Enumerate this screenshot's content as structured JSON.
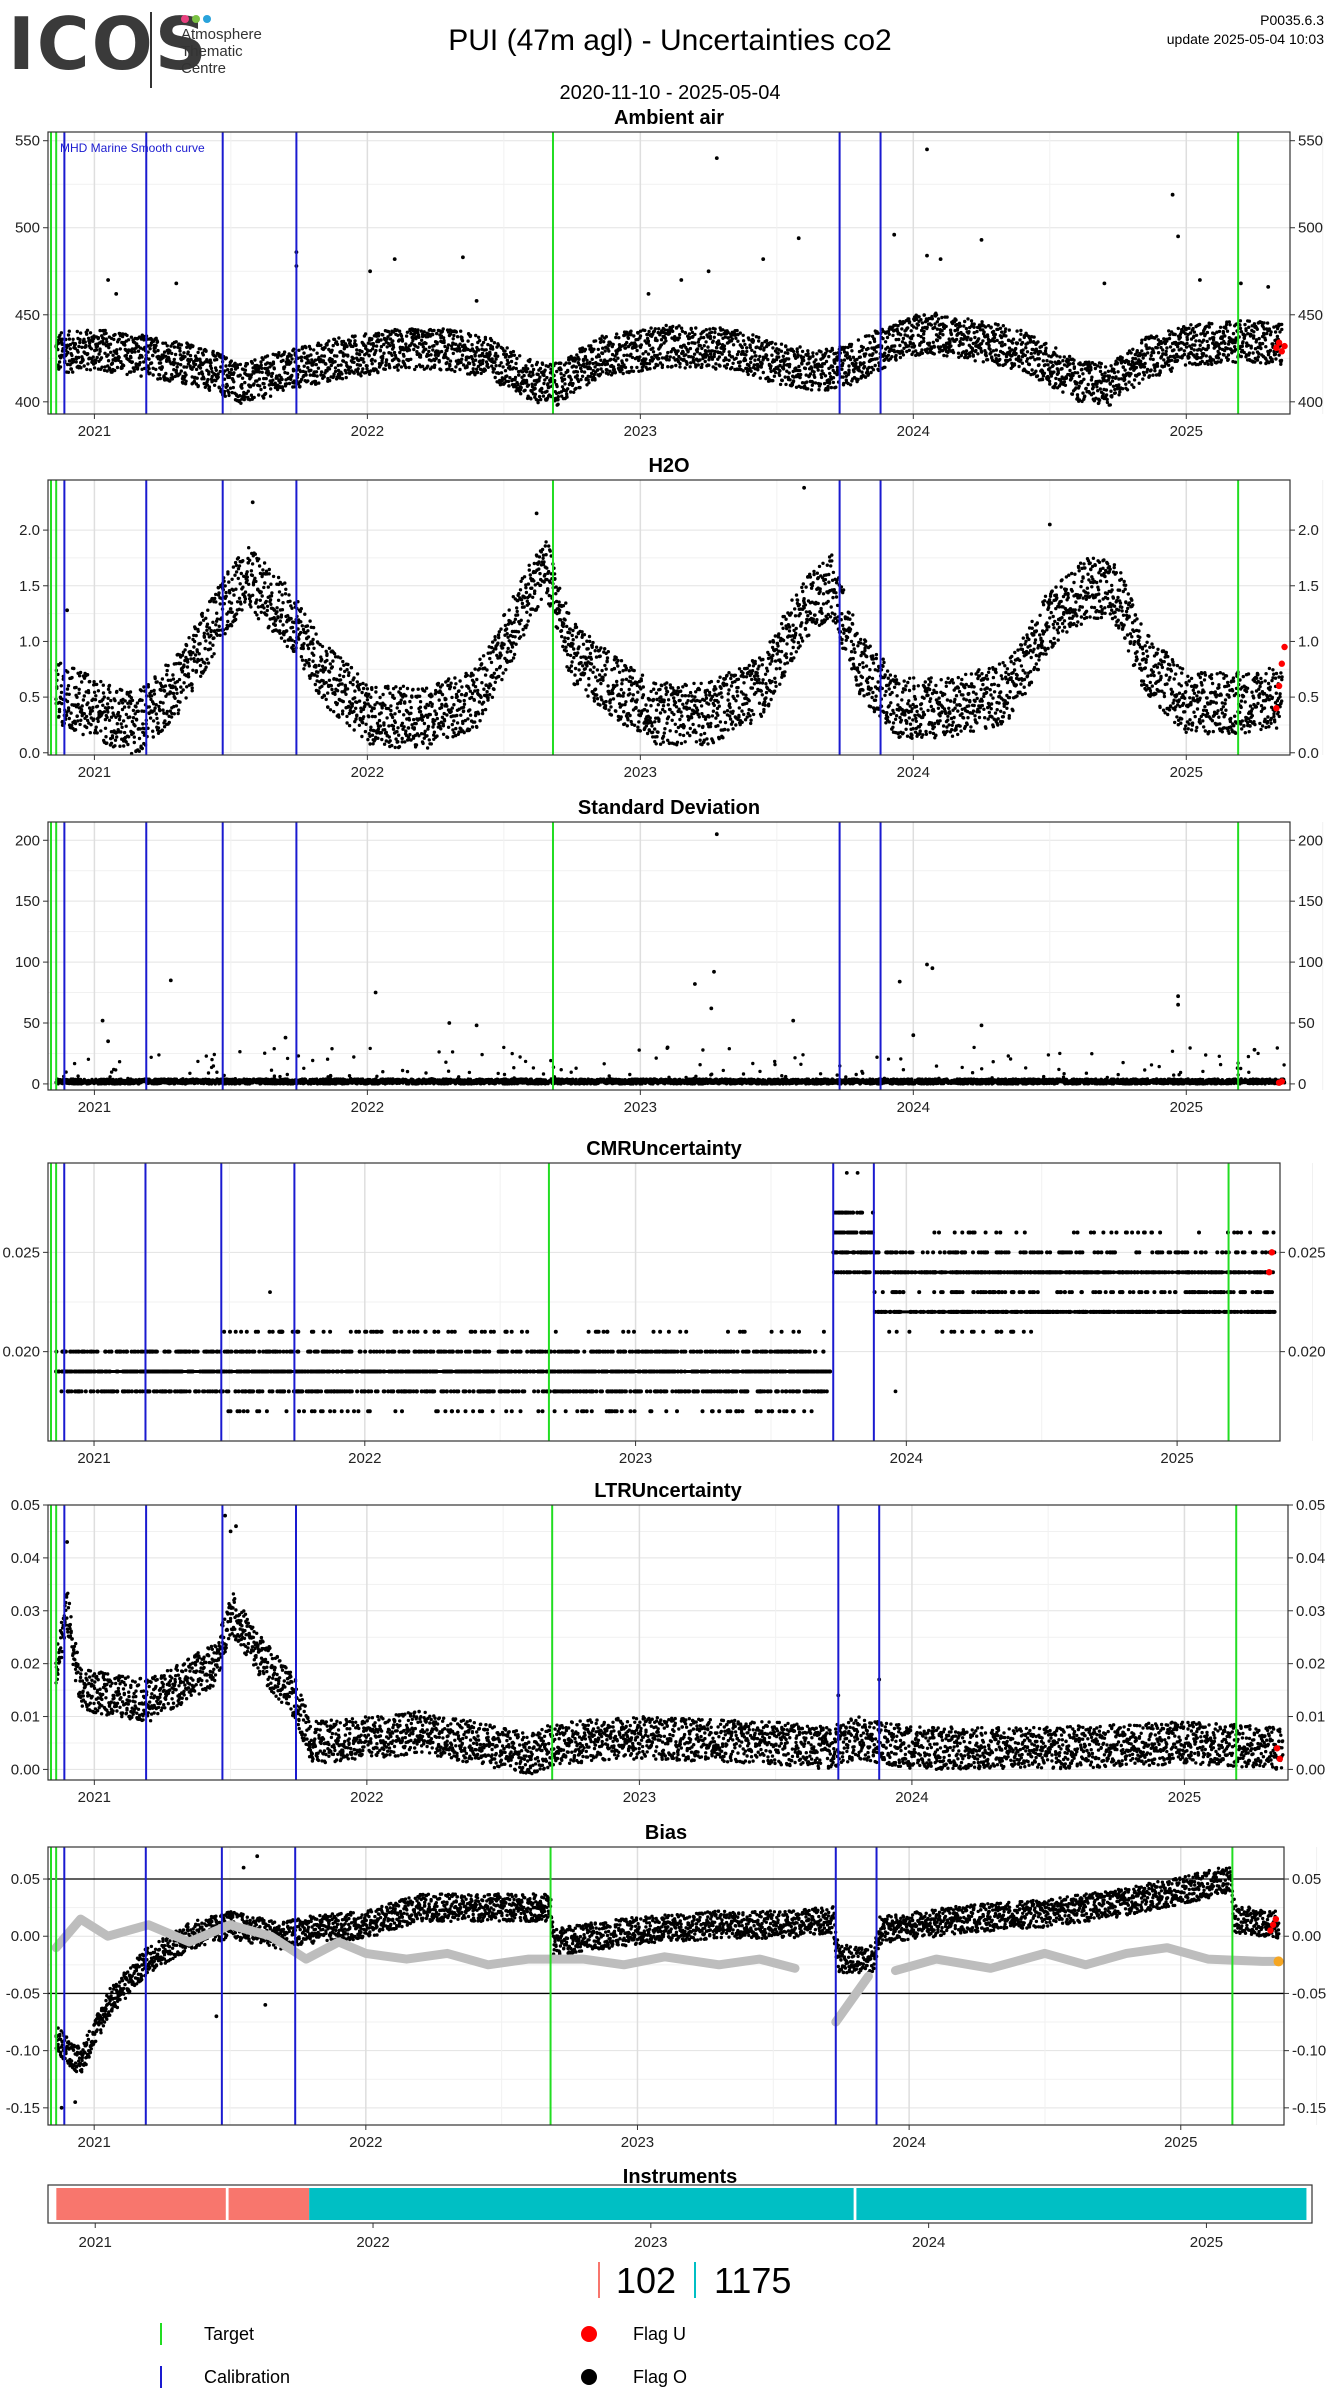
{
  "header": {
    "logo": "ICOS",
    "logo_subtitle": [
      "Atmosphere",
      "Thematic",
      "Centre"
    ],
    "logo_dot_colors": [
      "#e8417f",
      "#7ac143",
      "#29a3db"
    ],
    "title": "PUI  (47m agl) - Uncertainties co2",
    "date_range": "2020-11-10 - 2025-05-04",
    "version": "P0035.6.3",
    "update": "update  2025-05-04 10:03"
  },
  "colors": {
    "target": "#22dd22",
    "calibration": "#1a1ad0",
    "flag_u": "#ff0000",
    "flag_o": "#000000",
    "smooth": "#bdbdbd",
    "instrument_a": "#f8766d",
    "instrument_b": "#00bfc4",
    "bias_end_marker": "#f5a623"
  },
  "events": {
    "target_dates": [
      2020.86,
      2022.68,
      2025.19
    ],
    "calibration_dates": [
      2020.89,
      2021.19,
      2021.47,
      2021.74,
      2023.73,
      2023.88
    ]
  },
  "chart_data": [
    {
      "type": "scatter",
      "title": "Ambient air",
      "annotation": "MHD Marine Smooth curve",
      "x_range": [
        2020.83,
        2025.38
      ],
      "x_ticks": [
        "2021",
        "2022",
        "2023",
        "2024",
        "2025"
      ],
      "ylim": [
        393,
        555
      ],
      "y_ticks": [
        400,
        450,
        500,
        550
      ],
      "grid": true,
      "baseline": [
        [
          2020.86,
          428
        ],
        [
          2021.0,
          430
        ],
        [
          2021.2,
          426
        ],
        [
          2021.4,
          420
        ],
        [
          2021.55,
          410
        ],
        [
          2021.7,
          418
        ],
        [
          2021.9,
          425
        ],
        [
          2022.1,
          430
        ],
        [
          2022.3,
          430
        ],
        [
          2022.45,
          425
        ],
        [
          2022.6,
          412
        ],
        [
          2022.7,
          410
        ],
        [
          2022.85,
          426
        ],
        [
          2023.1,
          432
        ],
        [
          2023.35,
          430
        ],
        [
          2023.5,
          422
        ],
        [
          2023.65,
          418
        ],
        [
          2023.75,
          420
        ],
        [
          2023.9,
          432
        ],
        [
          2024.05,
          440
        ],
        [
          2024.2,
          436
        ],
        [
          2024.4,
          430
        ],
        [
          2024.6,
          412
        ],
        [
          2024.72,
          410
        ],
        [
          2024.85,
          425
        ],
        [
          2025.0,
          432
        ],
        [
          2025.2,
          435
        ],
        [
          2025.35,
          433
        ]
      ],
      "spread": 12,
      "outliers": [
        [
          2021.05,
          470
        ],
        [
          2021.08,
          462
        ],
        [
          2021.3,
          468
        ],
        [
          2021.74,
          486
        ],
        [
          2021.74,
          478
        ],
        [
          2022.01,
          475
        ],
        [
          2022.1,
          482
        ],
        [
          2022.35,
          483
        ],
        [
          2022.4,
          458
        ],
        [
          2023.03,
          462
        ],
        [
          2023.28,
          540
        ],
        [
          2023.15,
          470
        ],
        [
          2023.25,
          475
        ],
        [
          2023.45,
          482
        ],
        [
          2023.58,
          494
        ],
        [
          2023.93,
          496
        ],
        [
          2024.05,
          545
        ],
        [
          2024.05,
          484
        ],
        [
          2024.1,
          482
        ],
        [
          2024.25,
          493
        ],
        [
          2024.7,
          468
        ],
        [
          2024.95,
          519
        ],
        [
          2024.97,
          495
        ],
        [
          2025.05,
          470
        ],
        [
          2025.2,
          468
        ],
        [
          2025.3,
          466
        ]
      ],
      "flag_u_points": [
        [
          2025.33,
          431
        ],
        [
          2025.34,
          434
        ],
        [
          2025.35,
          429
        ],
        [
          2025.36,
          432
        ]
      ]
    },
    {
      "type": "scatter",
      "title": "H2O",
      "x_range": [
        2020.83,
        2025.38
      ],
      "x_ticks": [
        "2021",
        "2022",
        "2023",
        "2024",
        "2025"
      ],
      "ylim": [
        -0.02,
        2.45
      ],
      "y_ticks": [
        "0.0",
        "0.5",
        "1.0",
        "1.5",
        "2.0"
      ],
      "grid": true,
      "baseline": [
        [
          2020.86,
          0.55
        ],
        [
          2021.0,
          0.4
        ],
        [
          2021.15,
          0.25
        ],
        [
          2021.3,
          0.6
        ],
        [
          2021.45,
          1.2
        ],
        [
          2021.55,
          1.6
        ],
        [
          2021.7,
          1.25
        ],
        [
          2021.85,
          0.7
        ],
        [
          2022.0,
          0.35
        ],
        [
          2022.2,
          0.3
        ],
        [
          2022.4,
          0.5
        ],
        [
          2022.55,
          1.2
        ],
        [
          2022.65,
          1.7
        ],
        [
          2022.75,
          0.9
        ],
        [
          2022.9,
          0.6
        ],
        [
          2023.05,
          0.35
        ],
        [
          2023.25,
          0.35
        ],
        [
          2023.45,
          0.6
        ],
        [
          2023.6,
          1.3
        ],
        [
          2023.7,
          1.5
        ],
        [
          2023.8,
          0.8
        ],
        [
          2023.95,
          0.4
        ],
        [
          2024.15,
          0.4
        ],
        [
          2024.35,
          0.55
        ],
        [
          2024.5,
          1.2
        ],
        [
          2024.65,
          1.5
        ],
        [
          2024.75,
          1.4
        ],
        [
          2024.85,
          0.8
        ],
        [
          2025.0,
          0.45
        ],
        [
          2025.2,
          0.45
        ],
        [
          2025.35,
          0.5
        ]
      ],
      "spread": 0.28,
      "outliers": [
        [
          2021.58,
          2.25
        ],
        [
          2022.62,
          2.15
        ],
        [
          2023.6,
          2.38
        ],
        [
          2024.5,
          2.05
        ],
        [
          2020.9,
          1.28
        ]
      ],
      "flag_u_points": [
        [
          2025.33,
          0.4
        ],
        [
          2025.34,
          0.6
        ],
        [
          2025.35,
          0.8
        ],
        [
          2025.36,
          0.95
        ]
      ]
    },
    {
      "type": "scatter",
      "title": "Standard Deviation",
      "x_range": [
        2020.83,
        2025.38
      ],
      "x_ticks": [
        "2021",
        "2022",
        "2023",
        "2024",
        "2025"
      ],
      "ylim": [
        -5,
        215
      ],
      "y_ticks": [
        0,
        50,
        100,
        150,
        200
      ],
      "grid": true,
      "baseline": [
        [
          2020.86,
          2
        ],
        [
          2025.36,
          2
        ]
      ],
      "spread": 2,
      "outliers": [
        [
          2021.28,
          85
        ],
        [
          2022.03,
          75
        ],
        [
          2023.28,
          205
        ],
        [
          2023.27,
          92
        ],
        [
          2023.2,
          82
        ],
        [
          2023.26,
          62
        ],
        [
          2024.05,
          98
        ],
        [
          2024.07,
          95
        ],
        [
          2023.95,
          84
        ],
        [
          2024.97,
          72
        ],
        [
          2024.97,
          65
        ],
        [
          2021.03,
          52
        ],
        [
          2022.3,
          50
        ],
        [
          2022.4,
          48
        ],
        [
          2023.56,
          52
        ],
        [
          2024.25,
          48
        ],
        [
          2021.05,
          35
        ],
        [
          2021.7,
          38
        ],
        [
          2025.25,
          28
        ],
        [
          2023.1,
          30
        ],
        [
          2024.0,
          40
        ]
      ],
      "extra_scatter": {
        "count": 320,
        "ymax": 30
      },
      "flag_u_points": [
        [
          2025.34,
          1
        ],
        [
          2025.35,
          2
        ]
      ]
    },
    {
      "type": "scatter",
      "title": "CMRUncertainty",
      "x_range": [
        2020.83,
        2025.38
      ],
      "x_ticks": [
        "2021",
        "2022",
        "2023",
        "2024",
        "2025"
      ],
      "ylim": [
        0.0155,
        0.0295
      ],
      "y_ticks": [
        "0.020",
        "0.025"
      ],
      "grid": true,
      "levels": [
        {
          "x": [
            2020.86,
            2023.72
          ],
          "y": 0.019,
          "density": 1.0
        },
        {
          "x": [
            2020.86,
            2023.72
          ],
          "y": 0.02,
          "density": 0.6
        },
        {
          "x": [
            2020.86,
            2023.72
          ],
          "y": 0.018,
          "density": 0.6
        },
        {
          "x": [
            2021.48,
            2023.72
          ],
          "y": 0.021,
          "density": 0.15
        },
        {
          "x": [
            2021.48,
            2023.72
          ],
          "y": 0.017,
          "density": 0.15
        },
        {
          "x": [
            2023.73,
            2023.88
          ],
          "y": 0.025,
          "density": 1.0
        },
        {
          "x": [
            2023.73,
            2023.88
          ],
          "y": 0.026,
          "density": 0.9
        },
        {
          "x": [
            2023.73,
            2023.88
          ],
          "y": 0.027,
          "density": 0.6
        },
        {
          "x": [
            2023.73,
            2023.88
          ],
          "y": 0.024,
          "density": 0.7
        },
        {
          "x": [
            2023.88,
            2025.36
          ],
          "y": 0.024,
          "density": 1.0
        },
        {
          "x": [
            2023.88,
            2025.36
          ],
          "y": 0.022,
          "density": 1.0
        },
        {
          "x": [
            2023.88,
            2025.36
          ],
          "y": 0.023,
          "density": 0.35
        },
        {
          "x": [
            2023.88,
            2025.36
          ],
          "y": 0.025,
          "density": 0.35
        },
        {
          "x": [
            2024.1,
            2025.36
          ],
          "y": 0.026,
          "density": 0.12
        },
        {
          "x": [
            2023.9,
            2024.5
          ],
          "y": 0.021,
          "density": 0.12
        }
      ],
      "outliers": [
        [
          2023.78,
          0.029
        ],
        [
          2023.82,
          0.029
        ],
        [
          2021.65,
          0.023
        ],
        [
          2023.96,
          0.018
        ]
      ],
      "flag_u_points": [
        [
          2025.34,
          0.024
        ],
        [
          2025.35,
          0.025
        ]
      ]
    },
    {
      "type": "scatter",
      "title": "LTRUncertainty",
      "x_range": [
        2020.83,
        2025.38
      ],
      "x_ticks": [
        "2021",
        "2022",
        "2023",
        "2024",
        "2025"
      ],
      "ylim": [
        -0.002,
        0.05
      ],
      "y_ticks": [
        "0.00",
        "0.01",
        "0.02",
        "0.03",
        "0.04",
        "0.05"
      ],
      "grid": true,
      "baseline": [
        [
          2020.86,
          0.02
        ],
        [
          2020.9,
          0.03
        ],
        [
          2020.95,
          0.015
        ],
        [
          2021.2,
          0.013
        ],
        [
          2021.45,
          0.02
        ],
        [
          2021.5,
          0.03
        ],
        [
          2021.6,
          0.022
        ],
        [
          2021.74,
          0.013
        ],
        [
          2021.8,
          0.005
        ],
        [
          2022.2,
          0.007
        ],
        [
          2022.4,
          0.005
        ],
        [
          2022.6,
          0.003
        ],
        [
          2022.7,
          0.005
        ],
        [
          2023.0,
          0.006
        ],
        [
          2023.5,
          0.005
        ],
        [
          2023.7,
          0.004
        ],
        [
          2023.8,
          0.006
        ],
        [
          2024.0,
          0.004
        ],
        [
          2024.5,
          0.004
        ],
        [
          2025.0,
          0.005
        ],
        [
          2025.36,
          0.004
        ]
      ],
      "spread": 0.004,
      "outliers": [
        [
          2021.48,
          0.048
        ],
        [
          2021.5,
          0.045
        ],
        [
          2021.52,
          0.046
        ],
        [
          2020.9,
          0.043
        ],
        [
          2023.73,
          0.014
        ],
        [
          2023.88,
          0.017
        ]
      ],
      "flag_u_points": [
        [
          2025.34,
          0.004
        ],
        [
          2025.35,
          0.002
        ]
      ]
    },
    {
      "type": "scatter",
      "title": "Bias",
      "x_range": [
        2020.83,
        2025.38
      ],
      "x_ticks": [
        "2021",
        "2022",
        "2023",
        "2024",
        "2025"
      ],
      "ylim": [
        -0.165,
        0.078
      ],
      "y_ticks": [
        "-0.15",
        "-0.10",
        "-0.05",
        "0.00",
        "0.05"
      ],
      "reference_lines": [
        0.05,
        -0.05
      ],
      "grid": true,
      "baseline": [
        [
          2020.86,
          -0.09
        ],
        [
          2020.95,
          -0.11
        ],
        [
          2021.05,
          -0.06
        ],
        [
          2021.2,
          -0.02
        ],
        [
          2021.35,
          0.0
        ],
        [
          2021.5,
          0.01
        ],
        [
          2021.7,
          0.0
        ],
        [
          2021.76,
          0.005
        ],
        [
          2022.0,
          0.01
        ],
        [
          2022.2,
          0.025
        ],
        [
          2022.4,
          0.025
        ],
        [
          2022.68,
          0.025
        ],
        [
          2022.69,
          -0.005
        ],
        [
          2023.0,
          0.005
        ],
        [
          2023.3,
          0.01
        ],
        [
          2023.55,
          0.01
        ],
        [
          2023.72,
          0.015
        ],
        [
          2023.74,
          -0.02
        ],
        [
          2023.87,
          -0.02
        ],
        [
          2023.89,
          0.005
        ],
        [
          2024.2,
          0.015
        ],
        [
          2024.5,
          0.02
        ],
        [
          2024.8,
          0.03
        ],
        [
          2025.1,
          0.045
        ],
        [
          2025.18,
          0.05
        ],
        [
          2025.2,
          0.015
        ],
        [
          2025.36,
          0.01
        ]
      ],
      "spread": 0.012,
      "outliers": [
        [
          2021.6,
          0.07
        ],
        [
          2021.55,
          0.06
        ],
        [
          2021.45,
          -0.07
        ],
        [
          2021.63,
          -0.06
        ],
        [
          2020.88,
          -0.15
        ],
        [
          2020.93,
          -0.145
        ]
      ],
      "smooth_curve": [
        [
          2020.86,
          -0.01
        ],
        [
          2020.95,
          0.015
        ],
        [
          2021.05,
          0.0
        ],
        [
          2021.2,
          0.01
        ],
        [
          2021.35,
          -0.005
        ],
        [
          2021.5,
          0.01
        ],
        [
          2021.65,
          0.0
        ],
        [
          2021.78,
          -0.02
        ],
        [
          2021.9,
          -0.005
        ],
        [
          2022.0,
          -0.015
        ],
        [
          2022.15,
          -0.02
        ],
        [
          2022.3,
          -0.015
        ],
        [
          2022.45,
          -0.025
        ],
        [
          2022.6,
          -0.02
        ],
        [
          2022.8,
          -0.02
        ],
        [
          2022.95,
          -0.025
        ],
        [
          2023.1,
          -0.018
        ],
        [
          2023.3,
          -0.025
        ],
        [
          2023.45,
          -0.02
        ],
        [
          2023.58,
          -0.028
        ],
        [
          2023.6,
          null
        ],
        [
          2023.73,
          -0.075
        ],
        [
          2023.85,
          -0.035
        ],
        [
          2023.88,
          null
        ],
        [
          2023.95,
          -0.03
        ],
        [
          2024.1,
          -0.02
        ],
        [
          2024.3,
          -0.028
        ],
        [
          2024.5,
          -0.015
        ],
        [
          2024.65,
          -0.025
        ],
        [
          2024.8,
          -0.015
        ],
        [
          2024.95,
          -0.01
        ],
        [
          2025.1,
          -0.02
        ],
        [
          2025.3,
          -0.022
        ],
        [
          2025.36,
          -0.022
        ]
      ],
      "flag_u_points": [
        [
          2025.33,
          0.005
        ],
        [
          2025.34,
          0.01
        ],
        [
          2025.35,
          0.015
        ]
      ],
      "end_marker": [
        2025.36,
        -0.022
      ]
    }
  ],
  "instruments": {
    "title": "Instruments",
    "x_range": [
      2020.83,
      2025.38
    ],
    "x_ticks": [
      "2021",
      "2022",
      "2023",
      "2024",
      "2025"
    ],
    "segments": [
      {
        "from": 2020.86,
        "to": 2021.47,
        "instrument": "102"
      },
      {
        "from": 2021.48,
        "to": 2021.77,
        "instrument": "102"
      },
      {
        "from": 2021.77,
        "to": 2023.73,
        "instrument": "1175"
      },
      {
        "from": 2023.74,
        "to": 2025.36,
        "instrument": "1175"
      }
    ],
    "ids": [
      "102",
      "1175"
    ]
  },
  "legend": {
    "target": "Target",
    "calibration": "Calibration",
    "flag_u": "Flag U",
    "flag_o": "Flag O"
  }
}
